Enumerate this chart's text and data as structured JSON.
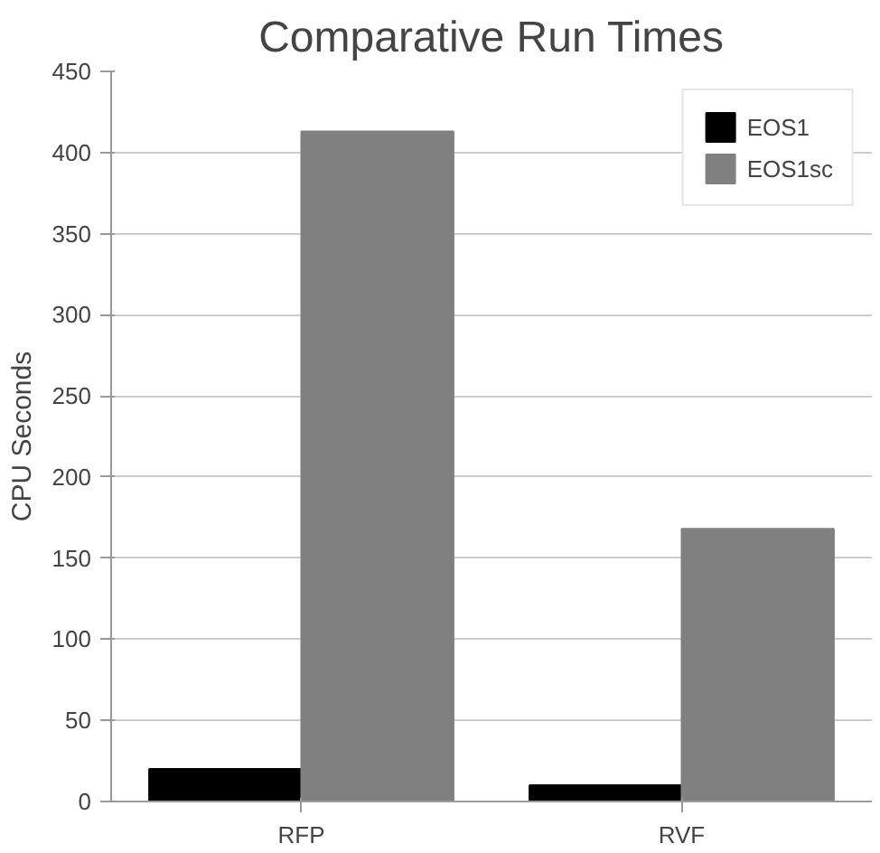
{
  "chart_data": {
    "type": "bar",
    "title": "Comparative Run Times",
    "ylabel": "CPU Seconds",
    "categories": [
      "RFP",
      "RVF"
    ],
    "series": [
      {
        "name": "EOS1",
        "color": "#000000",
        "values": [
          20,
          10
        ]
      },
      {
        "name": "EOS1sc",
        "color": "#808080",
        "values": [
          413,
          168
        ]
      }
    ],
    "ylim": [
      0,
      450
    ],
    "yticks": [
      0,
      50,
      100,
      150,
      200,
      250,
      300,
      350,
      400,
      450
    ],
    "grid": "y",
    "legend": "top right"
  }
}
